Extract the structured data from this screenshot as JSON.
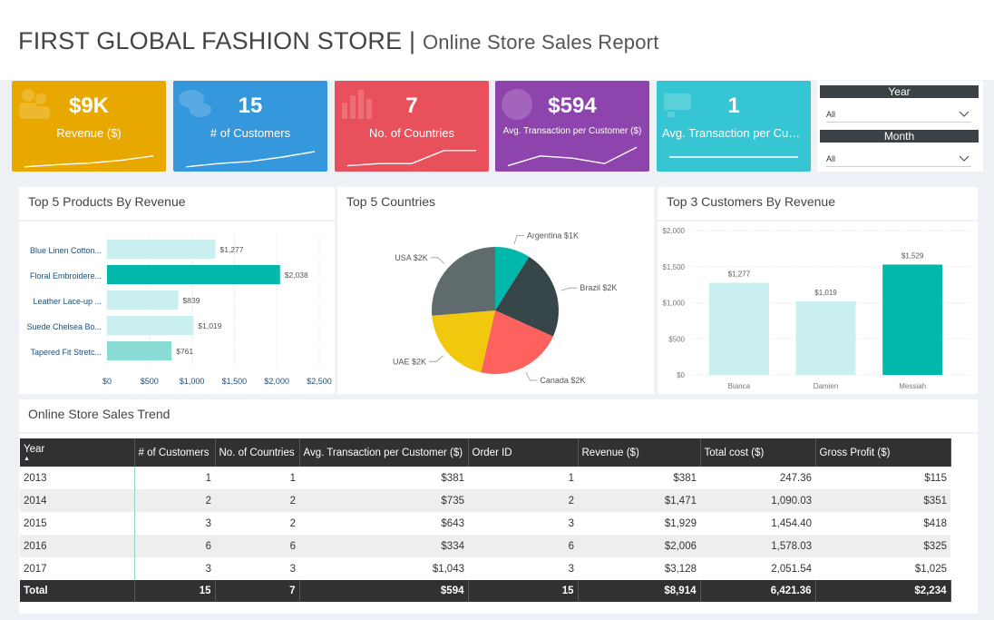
{
  "header": {
    "title_main": "FIRST GLOBAL FASHION STORE",
    "title_sep": " | ",
    "title_sub": "Online Store Sales Report"
  },
  "kpis": [
    {
      "value": "$9K",
      "label": "Revenue ($)",
      "color": "#e9a800",
      "icon": "people-icon",
      "spark": [
        0.05,
        0.15,
        0.22,
        0.35,
        0.55
      ]
    },
    {
      "value": "15",
      "label": "# of Customers",
      "color": "#3598dc",
      "icon": "chat-icon",
      "spark": [
        0.05,
        0.2,
        0.3,
        0.5,
        0.75
      ]
    },
    {
      "value": "7",
      "label": "No. of Countries",
      "color": "#e8505b",
      "icon": "bar-chart-icon",
      "spark": [
        0.1,
        0.2,
        0.2,
        0.8,
        0.8
      ]
    },
    {
      "value": "$594",
      "label": "Avg. Transaction per Customer ($)",
      "color": "#8e44ad",
      "icon": "globe-icon",
      "spark": [
        0.1,
        0.55,
        0.45,
        0.2,
        0.95
      ]
    },
    {
      "value": "1",
      "label": "Avg. Transaction per Custo...",
      "color": "#36c6d3",
      "icon": "cart-icon",
      "spark": [
        0.5,
        0.5,
        0.5,
        0.5,
        0.5
      ]
    }
  ],
  "filters": {
    "year": {
      "label": "Year",
      "value": "All"
    },
    "month": {
      "label": "Month",
      "value": "All"
    }
  },
  "panels": {
    "products": "Top 5 Products By Revenue",
    "countries": "Top 5 Countries",
    "customers": "Top 3 Customers By Revenue",
    "trend": "Online Store Sales Trend"
  },
  "chart_data": [
    {
      "type": "bar",
      "orientation": "horizontal",
      "title": "Top 5 Products By Revenue",
      "categories": [
        "Blue Linen Cotton...",
        "Floral Embroidere...",
        "Leather Lace-up ...",
        "Suede Chelsea Bo...",
        "Tapered Fit Stretc..."
      ],
      "values": [
        1277,
        2038,
        839,
        1019,
        761
      ],
      "data_labels": [
        "$1,277",
        "$2,038",
        "$839",
        "$1,019",
        "$761"
      ],
      "colors": [
        "#c9f0ee",
        "#01b8aa",
        "#c9f0ee",
        "#c9f0ee",
        "#8adbd3"
      ],
      "xlim": [
        0,
        2500
      ],
      "xticks": [
        "$0",
        "$500",
        "$1,000",
        "$1,500",
        "$2,000",
        "$2,500"
      ],
      "grid": true
    },
    {
      "type": "pie",
      "title": "Top 5 Countries",
      "slices": [
        {
          "label": "Argentina $1K",
          "value": 0.75,
          "color": "#01b8aa"
        },
        {
          "label": "Brazil $2K",
          "value": 1.9,
          "color": "#374649"
        },
        {
          "label": "Canada $2K",
          "value": 1.83,
          "color": "#fd625e"
        },
        {
          "label": "UAE $2K",
          "value": 1.68,
          "color": "#f2c80f"
        },
        {
          "label": "USA $2K",
          "value": 2.2,
          "color": "#5f6b6d"
        }
      ]
    },
    {
      "type": "bar",
      "orientation": "vertical",
      "title": "Top 3 Customers By Revenue",
      "categories": [
        "Bianca",
        "Damien",
        "Messiah"
      ],
      "values": [
        1277,
        1019,
        1529
      ],
      "data_labels": [
        "$1,277",
        "$1,019",
        "$1,529"
      ],
      "colors": [
        "#c9f0ee",
        "#c9f0ee",
        "#01b8aa"
      ],
      "ylim": [
        0,
        2000
      ],
      "yticks": [
        "$0",
        "$500",
        "$1,000",
        "$1,500",
        "$2,000"
      ],
      "grid": true
    }
  ],
  "table": {
    "columns": [
      "Year",
      "# of Customers",
      "No. of Countries",
      "Avg. Transaction per Customer ($)",
      "Order ID",
      "Revenue ($)",
      "Total cost ($)",
      "Gross Profit ($)"
    ],
    "rows": [
      [
        "2013",
        "1",
        "1",
        "$381",
        "1",
        "$381",
        "247.36",
        "$115"
      ],
      [
        "2014",
        "2",
        "2",
        "$735",
        "2",
        "$1,471",
        "1,090.03",
        "$351"
      ],
      [
        "2015",
        "3",
        "2",
        "$643",
        "3",
        "$1,929",
        "1,454.40",
        "$418"
      ],
      [
        "2016",
        "6",
        "6",
        "$334",
        "6",
        "$2,006",
        "1,578.03",
        "$325"
      ],
      [
        "2017",
        "3",
        "3",
        "$1,043",
        "3",
        "$3,128",
        "2,051.54",
        "$1,025"
      ]
    ],
    "total": [
      "Total",
      "15",
      "7",
      "$594",
      "15",
      "$8,914",
      "6,421.36",
      "$2,234"
    ]
  }
}
